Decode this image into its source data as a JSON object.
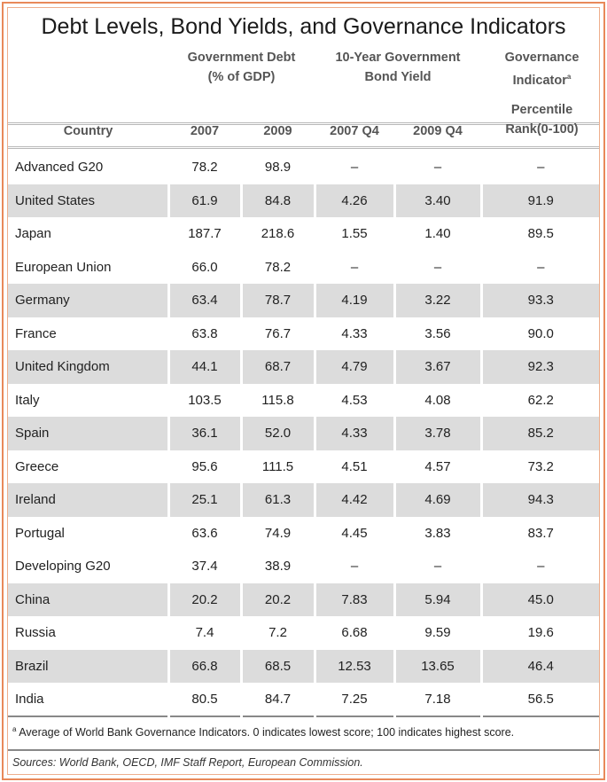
{
  "title": "Debt Levels, Bond Yields, and Governance Indicators",
  "group_headers": {
    "debt": [
      "Government Debt",
      "(% of GDP)"
    ],
    "yield": [
      "10-Year Government",
      "Bond Yield"
    ],
    "gov": [
      "Governance",
      "Indicator"
    ],
    "gov_sup": "a"
  },
  "columns": [
    "Country",
    "2007",
    "2009",
    "2007 Q4",
    "2009 Q4",
    "Percentile",
    "Rank(0-100)"
  ],
  "rows": [
    {
      "type": "group",
      "cells": [
        "Advanced G20",
        "78.2",
        "98.9",
        "–",
        "–",
        "–"
      ]
    },
    {
      "type": "shade",
      "cells": [
        "United States",
        "61.9",
        "84.8",
        "4.26",
        "3.40",
        "91.9"
      ]
    },
    {
      "type": "white",
      "cells": [
        "Japan",
        "187.7",
        "218.6",
        "1.55",
        "1.40",
        "89.5"
      ]
    },
    {
      "type": "group",
      "cells": [
        "European Union",
        "66.0",
        "78.2",
        "–",
        "–",
        "–"
      ]
    },
    {
      "type": "shade",
      "cells": [
        "Germany",
        "63.4",
        "78.7",
        "4.19",
        "3.22",
        "93.3"
      ]
    },
    {
      "type": "white",
      "cells": [
        "France",
        "63.8",
        "76.7",
        "4.33",
        "3.56",
        "90.0"
      ]
    },
    {
      "type": "shade",
      "cells": [
        "United Kingdom",
        "44.1",
        "68.7",
        "4.79",
        "3.67",
        "92.3"
      ]
    },
    {
      "type": "white",
      "cells": [
        "Italy",
        "103.5",
        "115.8",
        "4.53",
        "4.08",
        "62.2"
      ]
    },
    {
      "type": "shade",
      "cells": [
        "Spain",
        "36.1",
        "52.0",
        "4.33",
        "3.78",
        "85.2"
      ]
    },
    {
      "type": "white",
      "cells": [
        "Greece",
        "95.6",
        "111.5",
        "4.51",
        "4.57",
        "73.2"
      ]
    },
    {
      "type": "shade",
      "cells": [
        "Ireland",
        "25.1",
        "61.3",
        "4.42",
        "4.69",
        "94.3"
      ]
    },
    {
      "type": "white",
      "cells": [
        "Portugal",
        "63.6",
        "74.9",
        "4.45",
        "3.83",
        "83.7"
      ]
    },
    {
      "type": "group",
      "cells": [
        "Developing G20",
        "37.4",
        "38.9",
        "–",
        "–",
        "–"
      ]
    },
    {
      "type": "shade",
      "cells": [
        "China",
        "20.2",
        "20.2",
        "7.83",
        "5.94",
        "45.0"
      ]
    },
    {
      "type": "white",
      "cells": [
        "Russia",
        "7.4",
        "7.2",
        "6.68",
        "9.59",
        "19.6"
      ]
    },
    {
      "type": "shade",
      "cells": [
        "Brazil",
        "66.8",
        "68.5",
        "12.53",
        "13.65",
        "46.4"
      ]
    },
    {
      "type": "white",
      "cells": [
        "India",
        "80.5",
        "84.7",
        "7.25",
        "7.18",
        "56.5"
      ]
    }
  ],
  "footnote_mark": "a",
  "footnote": "Average of World Bank Governance Indicators. 0 indicates lowest score; 100 indicates highest score.",
  "sources": "Sources: World Bank, OECD, IMF Staff Report, European Commission."
}
